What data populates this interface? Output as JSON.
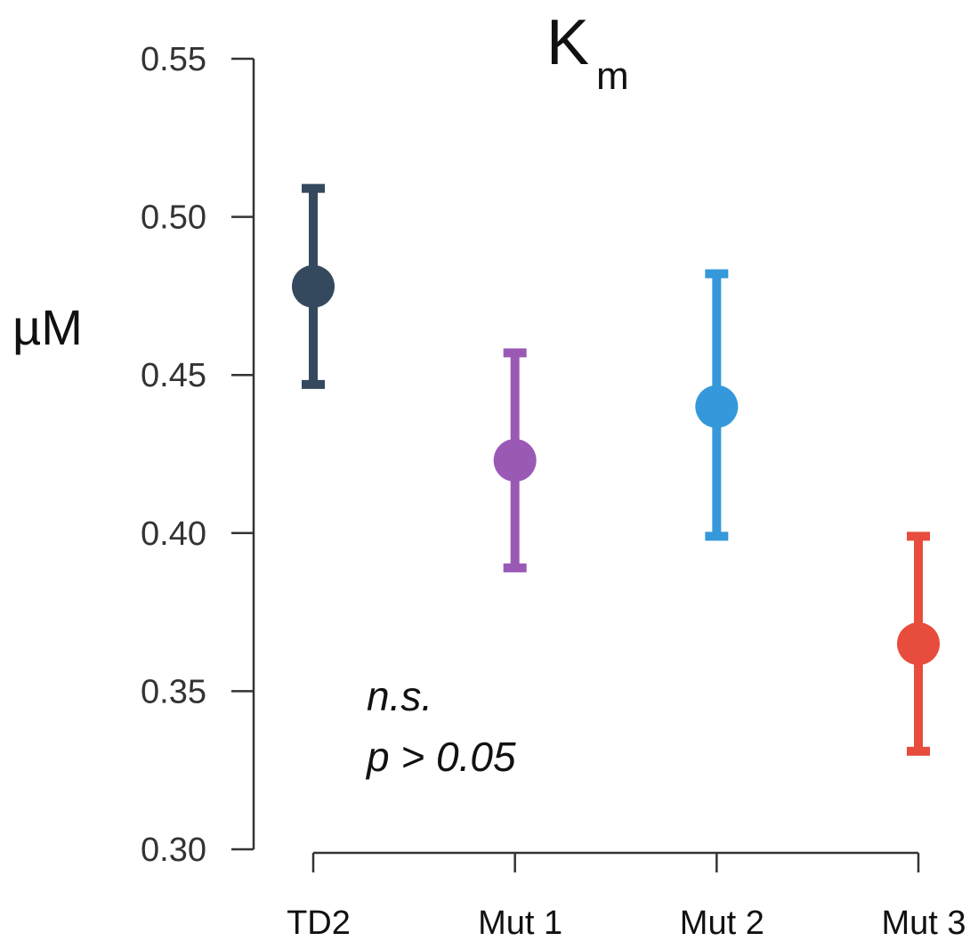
{
  "chart_data": {
    "type": "scatter",
    "title": "K",
    "title_subscript": "m",
    "ylabel": "µM",
    "xlabel": "",
    "ylim": [
      0.3,
      0.55
    ],
    "yticks": [
      "0.30",
      "0.35",
      "0.40",
      "0.45",
      "0.50",
      "0.55"
    ],
    "categories": [
      "TD2",
      "Mut 1",
      "Mut 2",
      "Mut 3"
    ],
    "points": [
      {
        "category": "TD2",
        "mean": 0.478,
        "lower": 0.447,
        "upper": 0.509,
        "color": "#34495e"
      },
      {
        "category": "Mut 1",
        "mean": 0.423,
        "lower": 0.389,
        "upper": 0.457,
        "color": "#9b59b6"
      },
      {
        "category": "Mut 2",
        "mean": 0.44,
        "lower": 0.399,
        "upper": 0.482,
        "color": "#3498db"
      },
      {
        "category": "Mut 3",
        "mean": 0.365,
        "lower": 0.331,
        "upper": 0.399,
        "color": "#e74c3c"
      }
    ],
    "annotation": [
      "n.s.",
      "p > 0.05"
    ],
    "grid": false,
    "legend": "none"
  }
}
